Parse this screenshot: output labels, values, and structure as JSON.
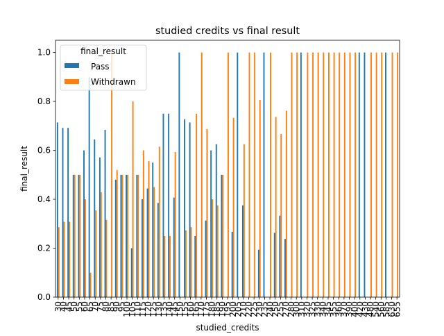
{
  "chart_data": {
    "type": "bar",
    "title": "studied credits vs final result",
    "xlabel": "studied_credits",
    "ylabel": "final_result",
    "ylim": [
      0,
      1.05
    ],
    "yticks": [
      "0.0",
      "0.2",
      "0.4",
      "0.6",
      "0.8",
      "1.0"
    ],
    "legend": {
      "title": "final_result",
      "placement": "top-left"
    },
    "categories": [
      "30",
      "40",
      "45",
      "50",
      "55",
      "60",
      "65",
      "70",
      "75",
      "80",
      "85",
      "90",
      "95",
      "100",
      "105",
      "110",
      "115",
      "120",
      "125",
      "130",
      "135",
      "140",
      "145",
      "150",
      "155",
      "160",
      "165",
      "170",
      "175",
      "180",
      "185",
      "190",
      "195",
      "200",
      "205",
      "210",
      "220",
      "225",
      "230",
      "235",
      "240",
      "250",
      "255",
      "270",
      "280",
      "300",
      "310",
      "320",
      "325",
      "330",
      "340",
      "345",
      "355",
      "360",
      "370",
      "390",
      "400",
      "420",
      "430",
      "480",
      "540",
      "560",
      "585",
      "630",
      "655"
    ],
    "series": [
      {
        "name": "Pass",
        "color": "#1f77b4",
        "values": [
          0.714,
          0.692,
          0.692,
          0.5,
          0.5,
          0.6,
          0.9,
          0.645,
          0.571,
          0.684,
          0,
          0.48,
          0.5,
          0.5,
          0.2,
          0.5,
          0.4,
          0.444,
          0.55,
          0.385,
          0.75,
          0.75,
          0.407,
          1.0,
          0.727,
          0.714,
          0.25,
          0,
          0.313,
          0.6,
          0.625,
          0.5,
          0,
          0.267,
          1.0,
          0.375,
          0,
          0,
          0.194,
          1.0,
          0,
          0.263,
          0.333,
          0.238,
          0,
          0,
          1.0,
          0,
          0,
          0,
          0,
          0,
          0,
          0,
          0,
          0,
          0,
          1.0,
          1.0,
          0,
          0,
          0,
          1.0,
          0,
          0
        ]
      },
      {
        "name": "Withdrawn",
        "color": "#ff7f0e",
        "values": [
          0.286,
          0.308,
          0.308,
          0.5,
          0.5,
          0.4,
          0.1,
          0.355,
          0.429,
          0.316,
          1.0,
          0.52,
          0.5,
          0.5,
          0.8,
          0.5,
          0.6,
          0.556,
          0.45,
          0.615,
          0.25,
          0.25,
          0.593,
          0,
          0.273,
          0.286,
          0.75,
          1.0,
          0.687,
          0.4,
          0.375,
          0.5,
          1.0,
          0.733,
          0,
          0.625,
          1.0,
          1.0,
          0.806,
          0,
          1.0,
          0.737,
          0.667,
          0.762,
          1.0,
          1.0,
          0,
          1.0,
          1.0,
          1.0,
          1.0,
          1.0,
          1.0,
          1.0,
          1.0,
          1.0,
          1.0,
          0,
          0,
          1.0,
          1.0,
          1.0,
          0,
          1.0,
          1.0
        ]
      }
    ]
  }
}
